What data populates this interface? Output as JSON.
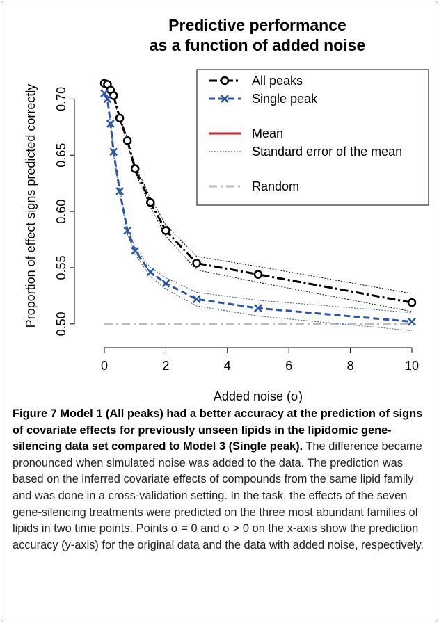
{
  "chart_data": {
    "type": "line",
    "title": [
      "Predictive performance",
      "as a function of added noise"
    ],
    "x_label": "Added noise (σ)",
    "y_label": "Proportion of effect signs predicted correctly",
    "x": [
      0,
      0.1,
      0.2,
      0.3,
      0.5,
      0.75,
      1,
      1.5,
      2,
      3,
      5,
      10
    ],
    "series": [
      {
        "name": "All peaks",
        "color": "#000000",
        "marker": "circle",
        "values": [
          0.714,
          0.713,
          0.708,
          0.703,
          0.683,
          0.663,
          0.638,
          0.608,
          0.583,
          0.554,
          0.544,
          0.519
        ],
        "errors": [
          0.001,
          0.001,
          0.002,
          0.002,
          0.002,
          0.002,
          0.003,
          0.004,
          0.005,
          0.006,
          0.007,
          0.008
        ]
      },
      {
        "name": "Single peak",
        "color": "#2a56a4",
        "marker": "cross",
        "values": [
          0.705,
          0.7,
          0.678,
          0.653,
          0.618,
          0.583,
          0.565,
          0.546,
          0.536,
          0.522,
          0.514,
          0.502
        ],
        "errors": [
          0.001,
          0.001,
          0.002,
          0.002,
          0.002,
          0.003,
          0.003,
          0.004,
          0.005,
          0.006,
          0.007,
          0.008
        ]
      }
    ],
    "legend_extra": [
      {
        "name": "Mean",
        "color": "#c0272d"
      },
      {
        "name": "Standard error of the mean",
        "color": "#c0272d"
      }
    ],
    "random": {
      "name": "Random",
      "value": 0.5,
      "color": "#bbbbbb"
    },
    "xlim": [
      0,
      10
    ],
    "xticks": [
      0,
      2,
      4,
      6,
      8,
      10
    ],
    "ylim": [
      0.49,
      0.72
    ],
    "yticks": [
      {
        "value": 0.5,
        "label": "0.50"
      },
      {
        "value": 0.55,
        "label": "0.55"
      },
      {
        "value": 0.6,
        "label": "0.60"
      },
      {
        "value": 0.65,
        "label": "0.65"
      },
      {
        "value": 0.7,
        "label": "0.70"
      }
    ],
    "legend": "top-right"
  },
  "caption": {
    "label": "Figure 7",
    "bold_text": "Model 1 (All peaks) had a better accuracy at the prediction of signs of covariate effects for previously unseen lipids in the lipidomic gene-silencing data set compared to Model 3 (Single peak).",
    "text": "The difference became pronounced when simulated noise was added to the data. The prediction was based on the inferred covariate effects of compounds from the same lipid family and was done in a cross-validation setting. In the task, the effects of the seven gene-silencing treatments were predicted on the three most abundant families of lipids in two time points. Points σ = 0 and σ > 0 on the x-axis show the prediction accuracy (y-axis) for the original data and the data with added noise, respectively."
  }
}
